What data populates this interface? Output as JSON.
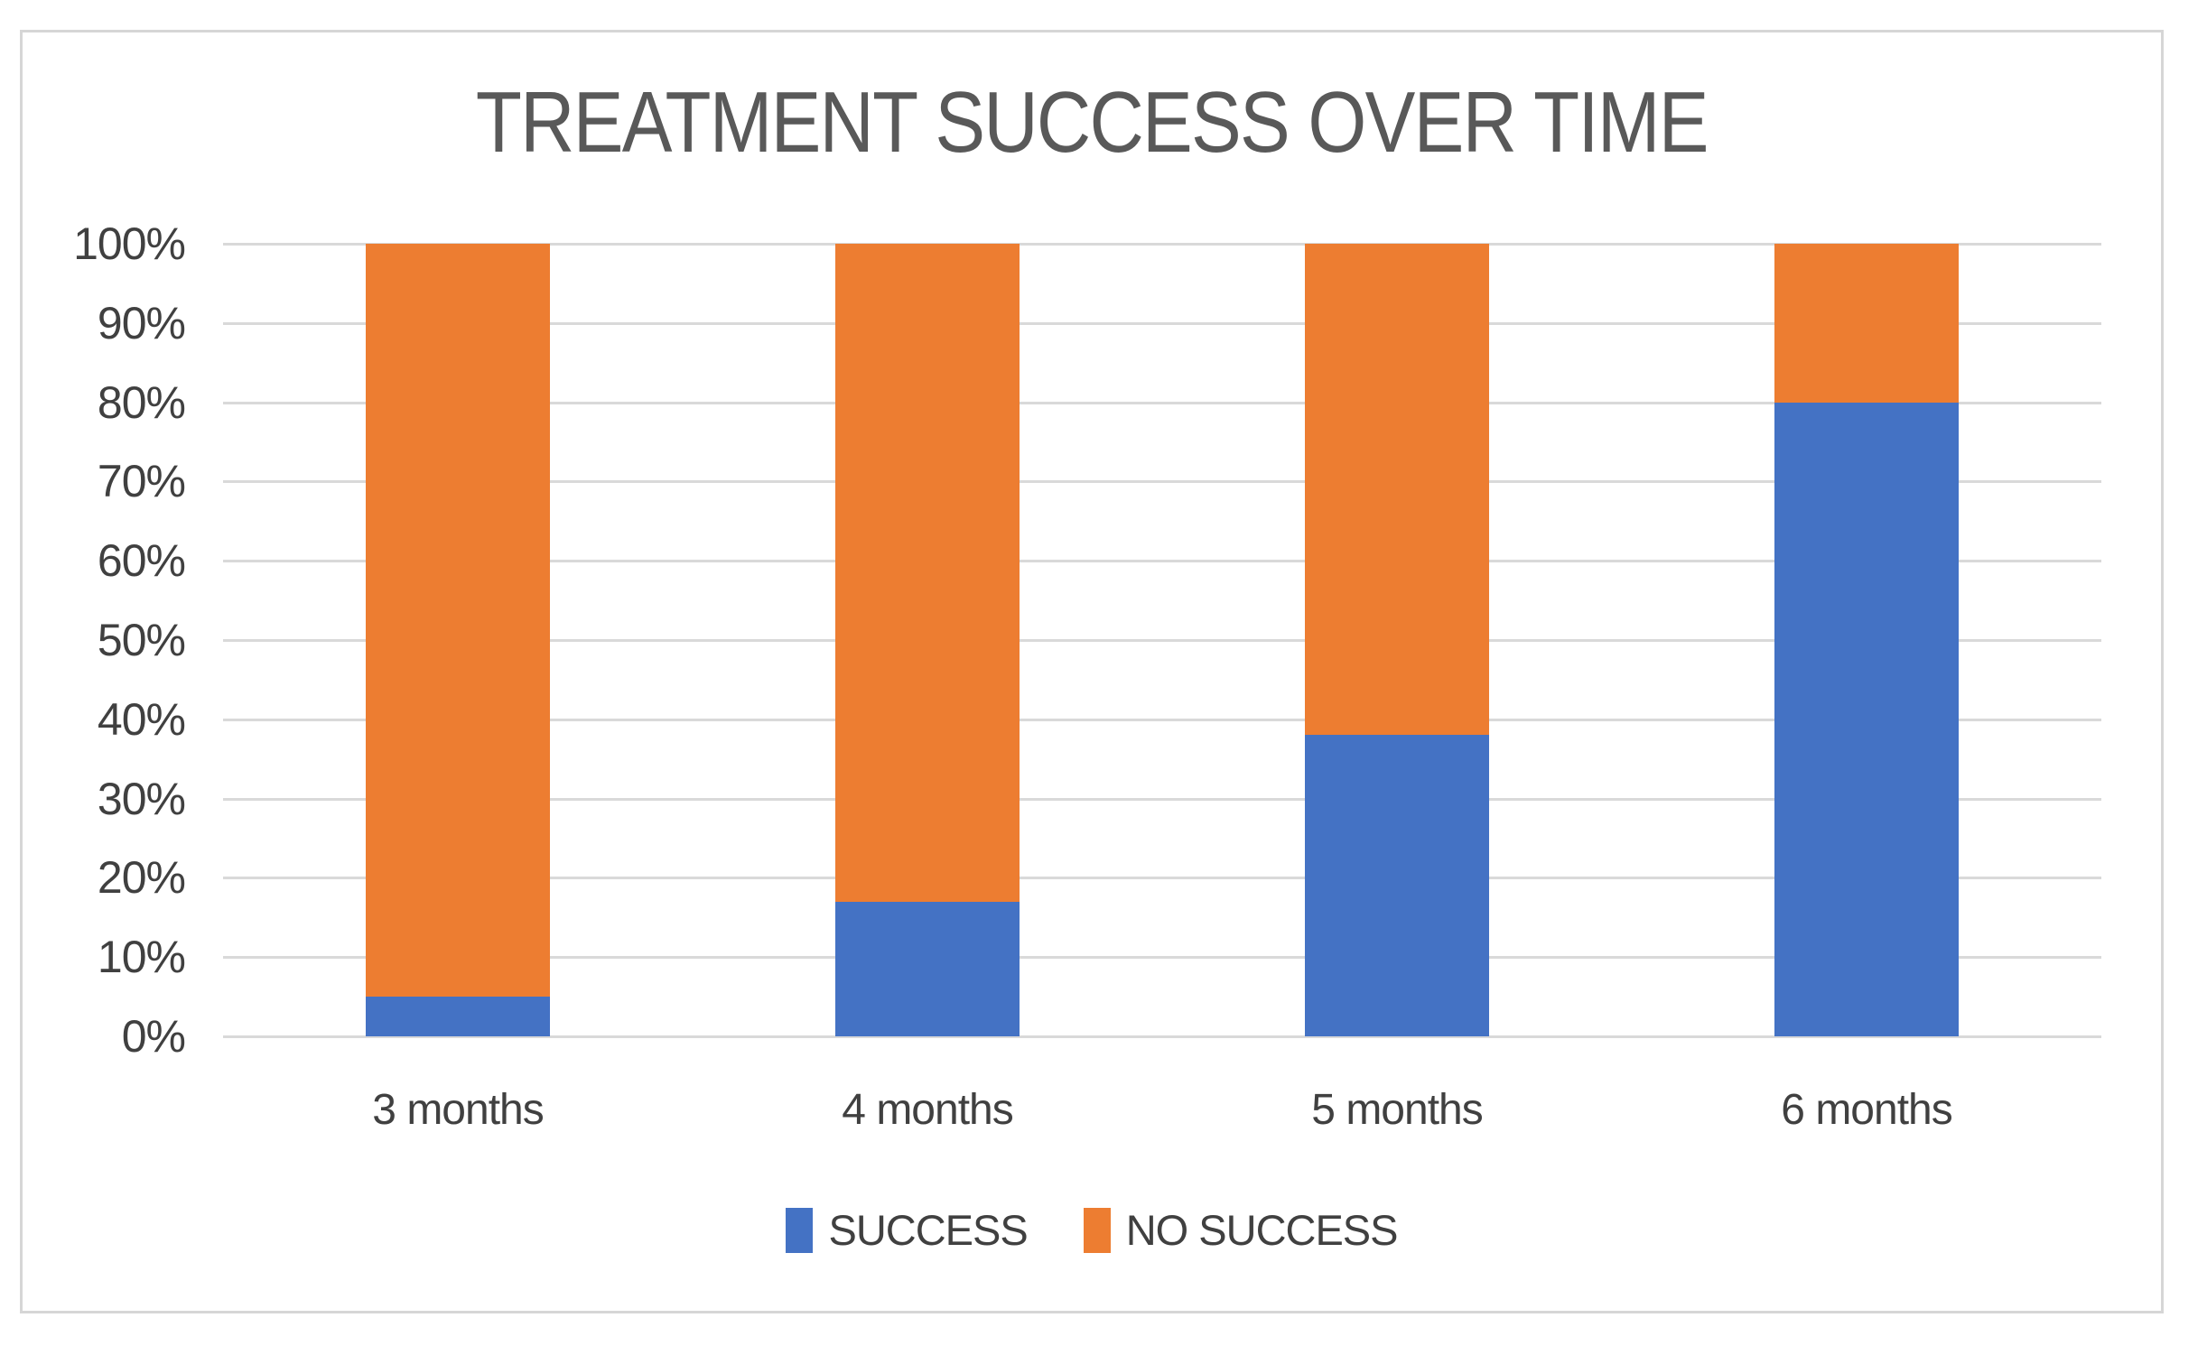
{
  "chart_data": {
    "type": "bar",
    "variant": "100-percent-stacked-column",
    "title": "TREATMENT SUCCESS OVER TIME",
    "categories": [
      "3 months",
      "4 months",
      "5 months",
      "6 months"
    ],
    "series": [
      {
        "name": "SUCCESS",
        "color": "#4472C4",
        "values": [
          5,
          17,
          38,
          80
        ]
      },
      {
        "name": "NO SUCCESS",
        "color": "#ED7D31",
        "values": [
          95,
          83,
          62,
          20
        ]
      }
    ],
    "xlabel": "",
    "ylabel": "",
    "ylim": [
      0,
      100
    ],
    "y_ticks": [
      "0%",
      "10%",
      "20%",
      "30%",
      "40%",
      "50%",
      "60%",
      "70%",
      "80%",
      "90%",
      "100%"
    ],
    "grid": true,
    "legend_position": "bottom",
    "colors": {
      "title_text": "#595959",
      "axis_text": "#404040",
      "gridline": "#d9d9d9",
      "frame_border": "#d6d6d6",
      "background": "#ffffff"
    }
  }
}
